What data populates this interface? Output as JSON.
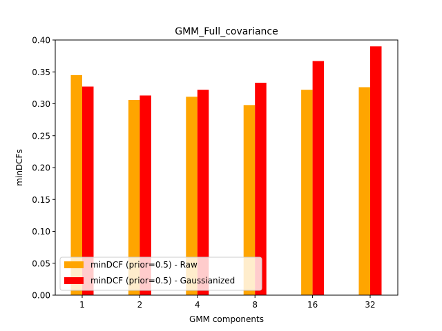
{
  "chart_data": {
    "type": "bar",
    "title": "GMM_Full_covariance",
    "xlabel": "GMM components",
    "ylabel": "minDCFs",
    "categories": [
      "1",
      "2",
      "4",
      "8",
      "16",
      "32"
    ],
    "series": [
      {
        "name": "minDCF (prior=0.5) - Raw",
        "color": "#ffa500",
        "values": [
          0.345,
          0.306,
          0.311,
          0.298,
          0.322,
          0.326
        ]
      },
      {
        "name": "minDCF (prior=0.5) - Gaussianized",
        "color": "#ff0000",
        "values": [
          0.327,
          0.313,
          0.322,
          0.333,
          0.367,
          0.39
        ]
      }
    ],
    "ylim": [
      0,
      0.4
    ],
    "yticks": [
      "0.00",
      "0.05",
      "0.10",
      "0.15",
      "0.20",
      "0.25",
      "0.30",
      "0.35",
      "0.40"
    ],
    "grid": false,
    "legend_position": "lower-left"
  }
}
